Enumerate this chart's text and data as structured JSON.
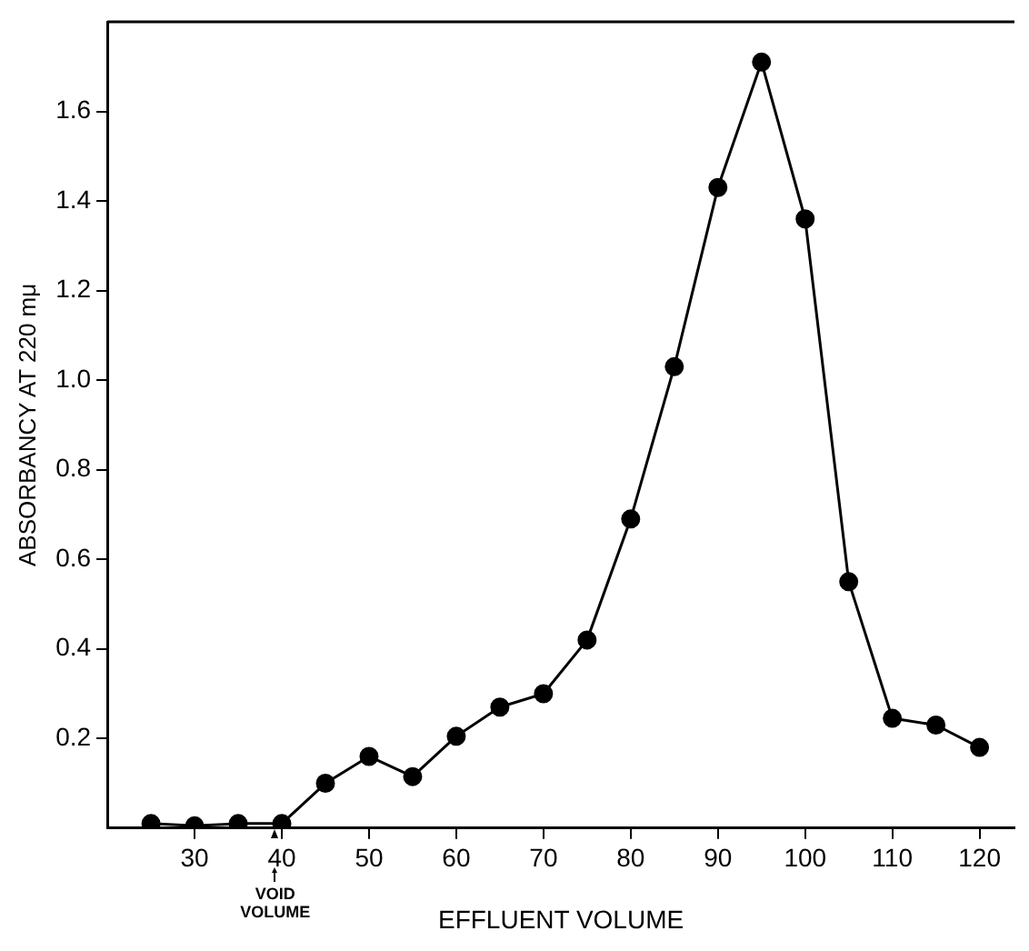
{
  "chart_data": {
    "type": "line",
    "xlabel": "EFFLUENT VOLUME",
    "ylabel": "ABSORBANCY AT 220 mμ",
    "x": [
      25,
      30,
      35,
      40,
      45,
      50,
      55,
      60,
      65,
      70,
      75,
      80,
      85,
      90,
      95,
      100,
      105,
      110,
      115,
      120
    ],
    "series": [
      {
        "color": "#000000",
        "values": [
          0.01,
          0.005,
          0.01,
          0.01,
          0.1,
          0.16,
          0.115,
          0.205,
          0.27,
          0.3,
          0.42,
          0.69,
          1.03,
          1.43,
          1.71,
          1.36,
          0.55,
          0.245,
          0.23,
          0.18
        ]
      }
    ],
    "xlim": [
      20,
      124
    ],
    "xticks": [
      30,
      40,
      50,
      60,
      70,
      80,
      90,
      100,
      110,
      120
    ],
    "ylim": [
      0,
      1.8
    ],
    "yticks": [
      0.2,
      0.4,
      0.6,
      0.8,
      {
        "value": 1,
        "label": "1.0"
      },
      1.2,
      1.4,
      1.6
    ],
    "annotations": [
      "VOID VOLUME"
    ],
    "marker": "circle",
    "line_style": "solid",
    "grid": false,
    "legend": false
  }
}
